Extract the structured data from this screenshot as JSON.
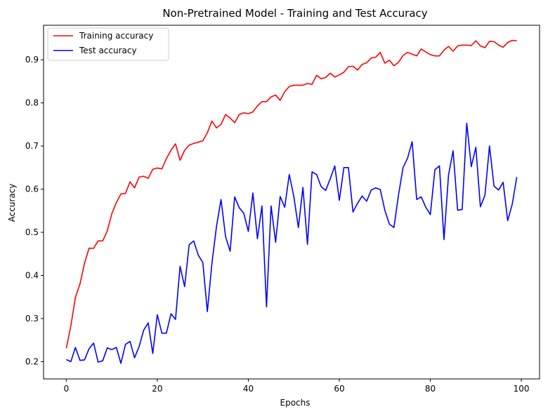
{
  "chart_data": {
    "type": "line",
    "title": "Non-Pretrained Model - Training and Test Accuracy",
    "xlabel": "Epochs",
    "ylabel": "Accuracy",
    "xlim": [
      -5,
      104
    ],
    "ylim": [
      0.16,
      0.98
    ],
    "xticks": [
      0,
      20,
      40,
      60,
      80,
      100
    ],
    "yticks": [
      0.2,
      0.3,
      0.4,
      0.5,
      0.6,
      0.7,
      0.8,
      0.9
    ],
    "xtick_labels": [
      "0",
      "20",
      "40",
      "60",
      "80",
      "100"
    ],
    "ytick_labels": [
      "0.2",
      "0.3",
      "0.4",
      "0.5",
      "0.6",
      "0.7",
      "0.8",
      "0.9"
    ],
    "grid": false,
    "legend_position": "top-left",
    "series": [
      {
        "name": "Training accuracy",
        "color": "#ff0000",
        "values": [
          0.231,
          0.283,
          0.349,
          0.38,
          0.428,
          0.463,
          0.463,
          0.48,
          0.48,
          0.503,
          0.543,
          0.569,
          0.589,
          0.59,
          0.617,
          0.603,
          0.628,
          0.63,
          0.625,
          0.646,
          0.649,
          0.647,
          0.671,
          0.69,
          0.705,
          0.667,
          0.69,
          0.702,
          0.706,
          0.709,
          0.712,
          0.731,
          0.758,
          0.742,
          0.75,
          0.773,
          0.765,
          0.754,
          0.773,
          0.777,
          0.775,
          0.779,
          0.793,
          0.803,
          0.803,
          0.814,
          0.818,
          0.806,
          0.826,
          0.838,
          0.841,
          0.841,
          0.841,
          0.845,
          0.843,
          0.864,
          0.856,
          0.859,
          0.869,
          0.86,
          0.865,
          0.871,
          0.884,
          0.885,
          0.876,
          0.889,
          0.893,
          0.904,
          0.906,
          0.917,
          0.892,
          0.899,
          0.886,
          0.894,
          0.91,
          0.917,
          0.913,
          0.909,
          0.925,
          0.918,
          0.912,
          0.909,
          0.909,
          0.922,
          0.931,
          0.92,
          0.932,
          0.934,
          0.934,
          0.933,
          0.944,
          0.932,
          0.928,
          0.943,
          0.942,
          0.934,
          0.929,
          0.94,
          0.945,
          0.944
        ]
      },
      {
        "name": "Test accuracy",
        "color": "#0000ff",
        "values": [
          0.205,
          0.2,
          0.233,
          0.203,
          0.204,
          0.23,
          0.243,
          0.199,
          0.202,
          0.232,
          0.228,
          0.233,
          0.196,
          0.24,
          0.247,
          0.209,
          0.235,
          0.273,
          0.29,
          0.219,
          0.309,
          0.266,
          0.266,
          0.311,
          0.298,
          0.421,
          0.374,
          0.471,
          0.48,
          0.447,
          0.43,
          0.316,
          0.428,
          0.513,
          0.576,
          0.49,
          0.456,
          0.582,
          0.557,
          0.544,
          0.502,
          0.591,
          0.485,
          0.561,
          0.327,
          0.561,
          0.477,
          0.583,
          0.558,
          0.634,
          0.583,
          0.511,
          0.604,
          0.472,
          0.64,
          0.634,
          0.606,
          0.597,
          0.624,
          0.654,
          0.574,
          0.65,
          0.65,
          0.547,
          0.567,
          0.584,
          0.572,
          0.598,
          0.603,
          0.599,
          0.551,
          0.519,
          0.511,
          0.586,
          0.65,
          0.672,
          0.71,
          0.576,
          0.582,
          0.558,
          0.541,
          0.645,
          0.654,
          0.483,
          0.633,
          0.689,
          0.551,
          0.553,
          0.753,
          0.652,
          0.697,
          0.559,
          0.586,
          0.7,
          0.607,
          0.598,
          0.616,
          0.527,
          0.565,
          0.628
        ]
      }
    ]
  }
}
